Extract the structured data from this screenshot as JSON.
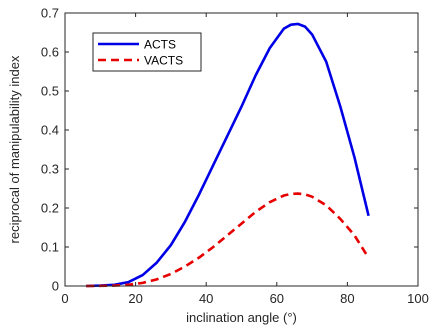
{
  "chart_data": {
    "type": "line",
    "title": "",
    "xlabel": "inclination angle (°)",
    "ylabel": "reciprocal of manipulability index",
    "xlim": [
      0,
      100
    ],
    "ylim": [
      0,
      0.7
    ],
    "xticks": [
      0,
      20,
      40,
      60,
      80,
      100
    ],
    "yticks": [
      0,
      0.1,
      0.2,
      0.3,
      0.4,
      0.5,
      0.6,
      0.7
    ],
    "xtick_labels": [
      "0",
      "20",
      "40",
      "60",
      "80",
      "100"
    ],
    "ytick_labels": [
      "0",
      "0.1",
      "0.2",
      "0.3",
      "0.4",
      "0.5",
      "0.6",
      "0.7"
    ],
    "grid": false,
    "legend_position": "top-left",
    "series": [
      {
        "name": "ACTS",
        "color": "#0000e6",
        "style": "solid",
        "x": [
          6,
          10,
          14,
          18,
          22,
          26,
          30,
          34,
          38,
          42,
          46,
          50,
          54,
          58,
          62,
          64,
          66,
          68,
          70,
          74,
          78,
          82,
          86
        ],
        "y": [
          0.0,
          0.001,
          0.003,
          0.01,
          0.028,
          0.06,
          0.105,
          0.165,
          0.235,
          0.31,
          0.385,
          0.46,
          0.54,
          0.61,
          0.66,
          0.67,
          0.672,
          0.665,
          0.645,
          0.575,
          0.46,
          0.33,
          0.18
        ]
      },
      {
        "name": "VACTS",
        "color": "#e60000",
        "style": "dashed",
        "x": [
          6,
          10,
          14,
          18,
          22,
          26,
          30,
          34,
          38,
          42,
          46,
          50,
          54,
          58,
          62,
          64,
          66,
          68,
          70,
          74,
          78,
          82,
          86
        ],
        "y": [
          0.0,
          0.0003,
          0.001,
          0.003,
          0.008,
          0.017,
          0.031,
          0.05,
          0.073,
          0.1,
          0.13,
          0.16,
          0.19,
          0.215,
          0.232,
          0.236,
          0.237,
          0.235,
          0.229,
          0.207,
          0.172,
          0.13,
          0.072
        ]
      }
    ]
  }
}
